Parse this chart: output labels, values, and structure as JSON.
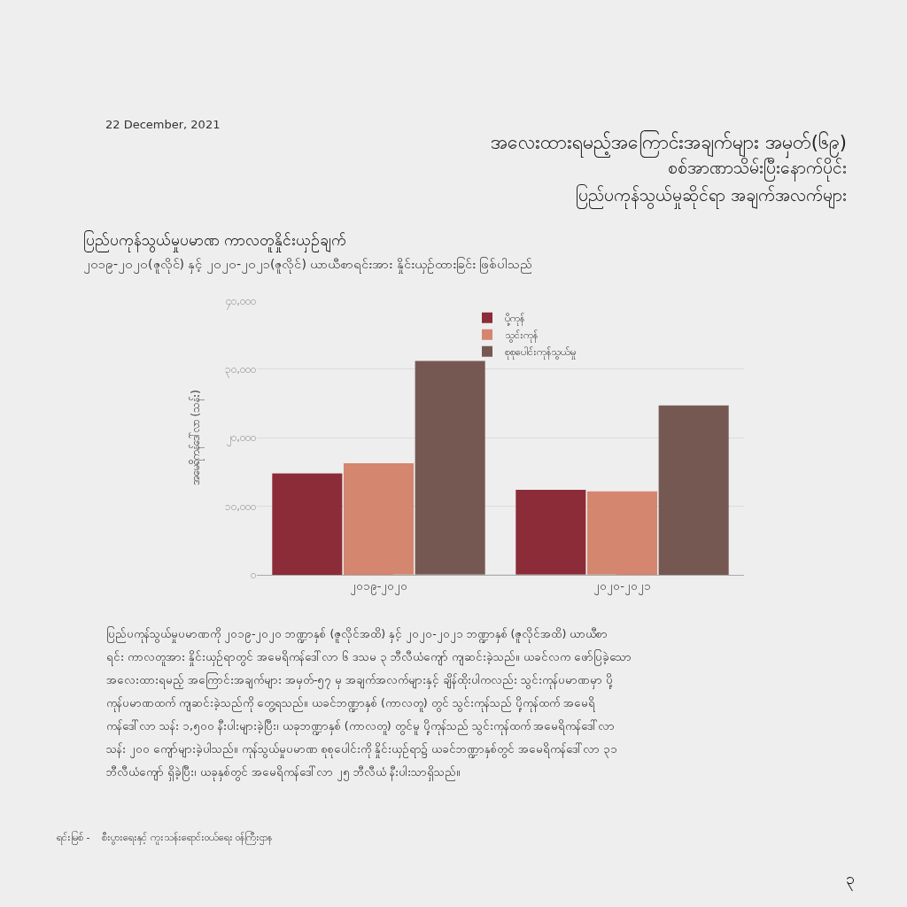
{
  "chart_data": {
    "type": "bar",
    "title": "အလေးထားရမည့်အကြောင်းအချက်များ အမှတ်(၆၉)",
    "subtitle": "စစ်အာဏာသိမ်းပြီးနောက်ပိုင်း\nပြည်ပကုန်သွယ်မှုဆိုင်ရာ အချက်အလက်များ",
    "ylabel": "အမေရိကန်ဒေါ်လာ (သန်း)",
    "categories": [
      "၂၀၁၉-၂၀၂၀",
      "၂၀၂၀-၂၀၂၁"
    ],
    "series": [
      {
        "name": "ပို့ကုန်",
        "color": "#8b2c38",
        "values": [
          14800,
          12400
        ]
      },
      {
        "name": "သွင်းကုန်",
        "color": "#d4866e",
        "values": [
          16300,
          12200
        ]
      },
      {
        "name": "စုစုပေါင်းကုန်သွယ်မှု",
        "color": "#765853",
        "values": [
          31200,
          24700
        ]
      }
    ],
    "ylim": [
      0,
      40000
    ],
    "yticks": [
      {
        "value": 0,
        "label": "၀"
      },
      {
        "value": 10000,
        "label": "၁၀,၀၀၀"
      },
      {
        "value": 20000,
        "label": "၂၀,၀၀၀"
      },
      {
        "value": 30000,
        "label": "၃၀,၀၀၀"
      },
      {
        "value": 40000,
        "label": "၄၀,၀၀၀"
      }
    ],
    "grid": "y",
    "legend": "top",
    "annotations": [
      "22 December, 2021",
      "ပြည်ပကုန်သွယ်မှုပမာဏ ကာလတူနှိုင်းယှဉ်ချက်",
      "၂၀၁၉-၂၀၂၀(ဇူလိုင်) နှင့် ၂၀၂၀-၂၀၂၁(ဇူလိုင်) ယာယီစာရင်းအား နှိုင်းယှဉ်ထားခြင်း ဖြစ်ပါသည်",
      "ပြည်ပကုန်သွယ်မှုပမာဏကို ၂၀၁၉-၂၀၂၀ ဘဏ္ဍာနှစ် (ဇူလိုင်အထိ) နှင့် ၂၀၂၀-၂၀၂၁ ဘဏ္ဍာနှစ် (ဇူလိုင်အထိ) ယာယီစာ",
      "ရင်း ကာလတူအား နှိုင်းယှဉ်ရာတွင် အမေရိကန်ဒေါ်လာ ၆ ဒသမ ၃ ဘီလီယံကျော် ကျဆင်းခဲ့သည်။ ယခင်လက ဖော်ပြခဲ့သော",
      "အလေးထားရမည့် အကြောင်းအချက်များ အမှတ်-၅၇ မှ အချက်အလက်များနှင့် ချိန်ထိုးပါကလည်း သွင်းကုန်ပမာဏမှာ ပို့",
      "ကုန်ပမာဏထက် ကျဆင်းခဲ့သည်ကို တွေ့ရသည်။ ယခင်ဘဏ္ဍာနှစ် (ကာလတူ) တွင် သွင်းကုန်သည် ပို့ကုန်ထက် အမေရိ",
      "ကန်ဒေါ်လာ သန်း ၁,၅၀၀ နီးပါးများခဲ့ပြီး၊ ယခုဘဏ္ဍာနှစ် (ကာလတူ) တွင်မူ ပို့ကုန်သည် သွင်းကုန်ထက် အမေရိကန်ဒေါ်လာ",
      "သန်း ၂၀၀ ကျော်များခဲ့ပါသည်။ ကုန်သွယ်မှုပမာဏ စုစုပေါင်းကို နှိုင်းယှဉ်ရာ၌ ယခင်ဘဏ္ဍာနှစ်တွင် အမေရိကန်ဒေါ်လာ ၃၁",
      "ဘီလီယံကျော် ရှိခဲ့ပြီး၊ ယခုနှစ်တွင် အမေရိကန်ဒေါ်လာ ၂၅ ဘီလီယံ နီးပါးသာရှိသည်။",
      "ရင်းမြစ် -    စီးပွားရေးနှင့် ကူးသန်းရောင်းဝယ်ရေး ဝန်ကြီးဌာန",
      "၃"
    ]
  }
}
